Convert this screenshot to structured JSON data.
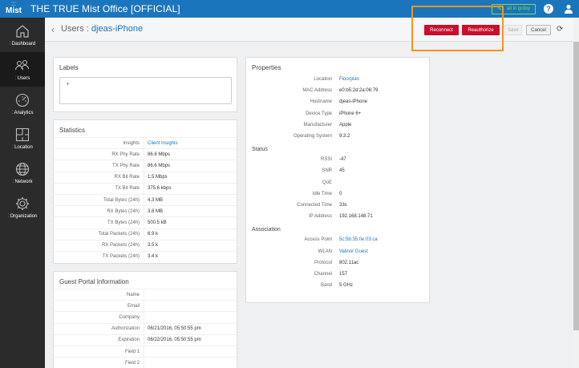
{
  "topbar": {
    "logo_dots": "⁚⁚⁚",
    "logo_text": "Mist",
    "org_title": "THE TRUE Mist Office [OFFICIAL]",
    "ai_button": "all in grdoy",
    "help": "?"
  },
  "sidebar": {
    "items": [
      {
        "label": "Dashboard",
        "icon": "home-icon"
      },
      {
        "label": "Users",
        "icon": "users-icon",
        "active": true
      },
      {
        "label": "Analytics",
        "icon": "gauge-icon"
      },
      {
        "label": "Location",
        "icon": "floorplan-icon"
      },
      {
        "label": "Network",
        "icon": "globe-icon"
      },
      {
        "label": "Organization",
        "icon": "gear-icon"
      }
    ]
  },
  "header": {
    "breadcrumb": "Users : ",
    "client": "djeas-iPhone",
    "reconnect": "Reconnect",
    "reauthorize": "Reauthorize",
    "save": "Save",
    "cancel": "Cancel"
  },
  "labels_card": {
    "title": "Labels",
    "add": "+"
  },
  "statistics": {
    "title": "Statistics",
    "rows": [
      {
        "k": "Insights",
        "v": "Client Insights",
        "link": true
      },
      {
        "k": "RX Phy Rate",
        "v": "86.6 Mbps"
      },
      {
        "k": "TX Phy Rate",
        "v": "86.6 Mbps"
      },
      {
        "k": "RX Bit Rate",
        "v": "1.5 Mbps"
      },
      {
        "k": "TX Bit Rate",
        "v": "375.6 kbps"
      },
      {
        "k": "Total Bytes (24h)",
        "v": "4.3 MB"
      },
      {
        "k": "RX Bytes (24h)",
        "v": "3.8 MB"
      },
      {
        "k": "TX Bytes (24h)",
        "v": "500.5 kB"
      },
      {
        "k": "Total Packets (24h)",
        "v": "6.9 k"
      },
      {
        "k": "RX Packets (24h)",
        "v": "3.5 k"
      },
      {
        "k": "TX Packets (24h)",
        "v": "3.4 k"
      }
    ]
  },
  "guest_portal": {
    "title": "Guest Portal Information",
    "rows": [
      {
        "k": "Name",
        "v": ""
      },
      {
        "k": "Email",
        "v": ""
      },
      {
        "k": "Company",
        "v": ""
      },
      {
        "k": "Authorization",
        "v": "06/21/2016, 05:50:55 pm"
      },
      {
        "k": "Expiration",
        "v": "06/22/2016, 05:50:55 pm"
      },
      {
        "k": "Field 1",
        "v": ""
      },
      {
        "k": "Field 2",
        "v": ""
      }
    ]
  },
  "properties": {
    "title": "Properties",
    "rows": [
      {
        "k": "Location",
        "v": "Floorplan",
        "link": true
      },
      {
        "k": "MAC Address",
        "v": "e0:b5:2d:2a:06:79"
      },
      {
        "k": "Hostname",
        "v": "djeas-iPhone"
      },
      {
        "k": "Device Type",
        "v": "iPhone 6+"
      },
      {
        "k": "Manufacturer",
        "v": "Apple"
      },
      {
        "k": "Operating System",
        "v": "9.3.2"
      }
    ],
    "status_title": "Status",
    "status_rows": [
      {
        "k": "RSSI",
        "v": "-47"
      },
      {
        "k": "SNR",
        "v": "45"
      },
      {
        "k": "QoE",
        "v": ""
      },
      {
        "k": "Idle Time",
        "v": "0"
      },
      {
        "k": "Connected Time",
        "v": "33s"
      },
      {
        "k": "IP Address",
        "v": "192.168.148.71"
      }
    ],
    "assoc_title": "Association",
    "assoc_rows": [
      {
        "k": "Access Point",
        "v": "5c:5b:35:0e:03:ca",
        "link": true
      },
      {
        "k": "WLAN",
        "v": "Valinor Guest",
        "link": true
      },
      {
        "k": "Protocol",
        "v": "802.11ac"
      },
      {
        "k": "Channel",
        "v": "157"
      },
      {
        "k": "Band",
        "v": "5 GHz"
      }
    ]
  }
}
